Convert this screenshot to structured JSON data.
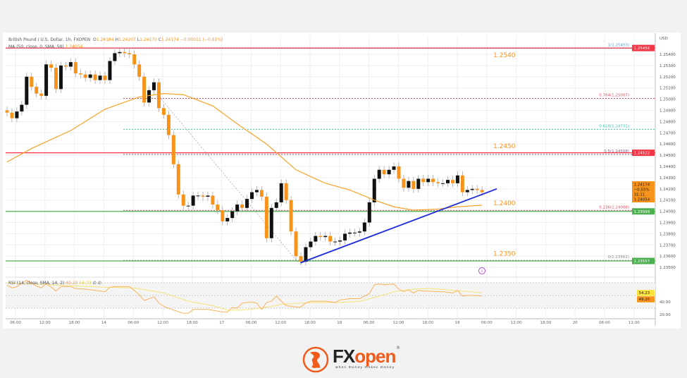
{
  "header": {
    "symbol": "British Pound / U.S. Dollar, 1h, FXOPEN",
    "open_label": "O",
    "open": "1.24184",
    "high_label": "H",
    "high": "1.24207",
    "low_label": "L",
    "low": "1.24170",
    "close_label": "C",
    "close": "1.24174",
    "change": "−0.00011 (−0.01%)",
    "ma_label": "MA (50, close, 0, SMA, 50)",
    "ma_value": "1.24054"
  },
  "rsi_legend": {
    "label": "RSI (14, close, SMA, 14, 2)",
    "value1": "49.20",
    "value2": "54.23",
    "icons": "∅ ∅"
  },
  "logo": {
    "brand_a": "FX",
    "brand_b": "open",
    "tagline": "when money makes money",
    "reg": "®"
  },
  "colors": {
    "bull": "#111111",
    "bear": "#f7931a",
    "ma": "#f7a128",
    "resistance": "#f23645",
    "support": "#4caf50",
    "trendline": "#1d2bd6",
    "rsi": "#f9b25a",
    "rsi_signal": "#f7e37a",
    "level_label": "#f7931a"
  },
  "chart_data": {
    "type": "candlestick",
    "currency": "USD",
    "ylim": [
      1.2345,
      1.2552
    ],
    "price_ticks": [
      "1.25400",
      "1.25300",
      "1.25200",
      "1.25100",
      "1.25000",
      "1.24900",
      "1.24800",
      "1.24700",
      "1.24600",
      "1.24500",
      "1.24400",
      "1.24300",
      "1.24200",
      "1.24100",
      "1.24000",
      "1.23900",
      "1.23800",
      "1.23700",
      "1.23600",
      "1.23500"
    ],
    "time_ticks": [
      "06:00",
      "12:00",
      "18:00",
      "14",
      "06:00",
      "12:00",
      "18:00",
      "17",
      "06:00",
      "12:00",
      "18:00",
      "18",
      "06:00",
      "12:00",
      "18:00",
      "19",
      "06:00",
      "12:00",
      "18:00",
      "20",
      "06:00",
      "12:00"
    ],
    "closes": [
      1.2488,
      1.2483,
      1.2489,
      1.2495,
      1.252,
      1.2511,
      1.2505,
      1.2503,
      1.2531,
      1.2528,
      1.2509,
      1.253,
      1.2529,
      1.2533,
      1.2523,
      1.2522,
      1.2519,
      1.2522,
      1.2517,
      1.2521,
      1.2517,
      1.2534,
      1.2541,
      1.2542,
      1.2541,
      1.254,
      1.2531,
      1.252,
      1.2497,
      1.2508,
      1.2515,
      1.2492,
      1.2486,
      1.2468,
      1.2442,
      1.2415,
      1.2405,
      1.2405,
      1.2414,
      1.2414,
      1.2413,
      1.2414,
      1.2406,
      1.2401,
      1.2391,
      1.2394,
      1.24,
      1.2406,
      1.2403,
      1.2411,
      1.2417,
      1.2419,
      1.2413,
      1.2376,
      1.2403,
      1.2408,
      1.2425,
      1.241,
      1.2382,
      1.236,
      1.2355,
      1.2368,
      1.2373,
      1.2378,
      1.2377,
      1.2378,
      1.2373,
      1.2373,
      1.2374,
      1.238,
      1.2381,
      1.2381,
      1.2382,
      1.239,
      1.2408,
      1.2429,
      1.2437,
      1.2433,
      1.2437,
      1.244,
      1.2429,
      1.2421,
      1.2427,
      1.242,
      1.2429,
      1.2426,
      1.2429,
      1.2426,
      1.2425,
      1.2425,
      1.2428,
      1.2425,
      1.2432,
      1.2417,
      1.2419,
      1.242,
      1.2419,
      1.2417
    ],
    "ma50": [
      [
        0,
        1.2444
      ],
      [
        5,
        1.2456
      ],
      [
        13,
        1.2472
      ],
      [
        20,
        1.2491
      ],
      [
        27,
        1.2502
      ],
      [
        32,
        1.2505
      ],
      [
        36,
        1.2504
      ],
      [
        42,
        1.2494
      ],
      [
        47,
        1.2478
      ],
      [
        53,
        1.246
      ],
      [
        59,
        1.2437
      ],
      [
        65,
        1.2425
      ],
      [
        70,
        1.2419
      ],
      [
        75,
        1.241
      ],
      [
        79,
        1.2404
      ],
      [
        83,
        1.2401
      ],
      [
        88,
        1.2402
      ],
      [
        92,
        1.2404
      ],
      [
        97,
        1.24054
      ]
    ],
    "trendline": [
      [
        59.9,
        1.2354
      ],
      [
        100,
        1.242
      ]
    ],
    "fib_diagonal": [
      [
        31.5,
        1.25
      ],
      [
        59.5,
        1.2354
      ]
    ],
    "horizontal_levels": [
      {
        "price": 1.25456,
        "color": "#f23645",
        "badge": "1.25456"
      },
      {
        "price": 1.24522,
        "color": "#f23645",
        "badge": "1.24522"
      },
      {
        "price": 1.23999,
        "color": "#4caf50",
        "badge": "1.23999"
      },
      {
        "price": 1.23557,
        "color": "#4caf50",
        "badge": "1.23557"
      }
    ],
    "fib_levels": [
      {
        "label": "1(1.25453)",
        "price": 1.25453,
        "color": "#5b9bd5"
      },
      {
        "label": "0.764(1.25007)",
        "price": 1.25007,
        "color": "#e05060"
      },
      {
        "label": "0.618(1.24731)",
        "price": 1.24731,
        "color": "#3cc8a0"
      },
      {
        "label": "0.5(1.24508)",
        "price": 1.24508,
        "color": "#806080"
      },
      {
        "label": "0.236(1.24008)",
        "price": 1.24008,
        "color": "#e05060"
      },
      {
        "label": "0(1.23562)",
        "price": 1.23562,
        "color": "#888888"
      }
    ],
    "level_annotations": [
      {
        "text": "1.2540",
        "price": 1.254
      },
      {
        "text": "1.2450",
        "price": 1.2459
      },
      {
        "text": "1.2400",
        "price": 1.2408
      },
      {
        "text": "1.2350",
        "price": 1.2363
      }
    ],
    "last_price_badge": {
      "price": "1.24174",
      "change": "−0.55%",
      "countdown": "31:11",
      "ma": "1.24054"
    },
    "rsi": {
      "ticks": [
        "40.00",
        "20.00"
      ],
      "bands": [
        70,
        50,
        30
      ],
      "badges": [
        "54.23",
        "49.20"
      ],
      "rsi": [
        [
          0,
          66
        ],
        [
          1,
          62
        ],
        [
          2,
          64
        ],
        [
          4,
          74
        ],
        [
          6,
          65
        ],
        [
          7,
          62
        ],
        [
          8,
          69
        ],
        [
          10,
          57
        ],
        [
          11,
          64
        ],
        [
          13,
          64
        ],
        [
          14,
          61
        ],
        [
          16,
          60
        ],
        [
          18,
          58
        ],
        [
          20,
          56
        ],
        [
          21,
          63
        ],
        [
          22,
          64
        ],
        [
          25,
          64
        ],
        [
          26,
          58
        ],
        [
          27,
          51
        ],
        [
          28,
          42
        ],
        [
          30,
          48
        ],
        [
          31,
          38
        ],
        [
          32,
          33
        ],
        [
          34,
          27
        ],
        [
          36,
          22
        ],
        [
          37,
          22
        ],
        [
          38,
          28
        ],
        [
          41,
          28
        ],
        [
          44,
          24
        ],
        [
          45,
          24
        ],
        [
          46,
          31
        ],
        [
          47,
          30
        ],
        [
          48,
          38
        ],
        [
          50,
          40
        ],
        [
          51,
          38
        ],
        [
          52,
          28
        ],
        [
          53,
          39
        ],
        [
          54,
          41
        ],
        [
          55,
          49
        ],
        [
          56,
          41
        ],
        [
          57,
          34
        ],
        [
          59,
          32
        ],
        [
          60,
          32
        ],
        [
          61,
          38
        ],
        [
          62,
          41
        ],
        [
          65,
          41
        ],
        [
          67,
          39
        ],
        [
          68,
          43
        ],
        [
          70,
          45
        ],
        [
          72,
          45
        ],
        [
          74,
          53
        ],
        [
          75,
          67
        ],
        [
          76,
          68
        ],
        [
          77,
          67
        ],
        [
          79,
          68
        ],
        [
          80,
          60
        ],
        [
          81,
          56
        ],
        [
          82,
          59
        ],
        [
          83,
          54
        ],
        [
          84,
          58
        ],
        [
          85,
          57
        ],
        [
          86,
          57
        ],
        [
          88,
          56
        ],
        [
          89,
          56
        ],
        [
          91,
          54
        ],
        [
          92,
          58
        ],
        [
          93,
          49
        ],
        [
          94,
          50
        ],
        [
          95,
          50
        ],
        [
          97,
          49.2
        ]
      ],
      "signal": [
        [
          0,
          70
        ],
        [
          20,
          63
        ],
        [
          26,
          62
        ],
        [
          32,
          54
        ],
        [
          37,
          41
        ],
        [
          42,
          34
        ],
        [
          45,
          27
        ],
        [
          48,
          27
        ],
        [
          52,
          30
        ],
        [
          56,
          36
        ],
        [
          62,
          39
        ],
        [
          68,
          39
        ],
        [
          72,
          41
        ],
        [
          76,
          49
        ],
        [
          79,
          56
        ],
        [
          83,
          60
        ],
        [
          86,
          61
        ],
        [
          90,
          59
        ],
        [
          97,
          54.2
        ]
      ]
    }
  }
}
